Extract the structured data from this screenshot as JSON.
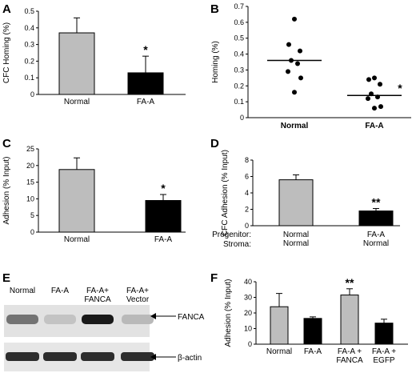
{
  "panels": {
    "A": "A",
    "B": "B",
    "C": "C",
    "D": "D",
    "E": "E",
    "F": "F"
  },
  "blot": {
    "lanes": [
      "Normal",
      "FA-A",
      "FA-A+\nFANCA",
      "FA-A+\nVector"
    ],
    "label_top": "FANCA",
    "label_bottom": "β-actin",
    "band_intensity_fanca": [
      0.55,
      0.15,
      1.0,
      0.2
    ],
    "band_intensity_actin": [
      0.9,
      0.9,
      0.9,
      0.9
    ]
  },
  "chart_data": [
    {
      "id": "A",
      "type": "bar",
      "categories": [
        "Normal",
        "FA-A"
      ],
      "values": [
        0.37,
        0.13
      ],
      "errors": [
        0.09,
        0.1
      ],
      "colors": [
        "#bdbdbd",
        "#000000"
      ],
      "ylabel": "CFC Homing (%)",
      "ylim": [
        0,
        0.5
      ],
      "yticks": [
        "0",
        "0.1",
        "0.2",
        "0.3",
        "0.4",
        "0.5"
      ],
      "significance": [
        "",
        "*"
      ]
    },
    {
      "id": "B",
      "type": "scatter",
      "categories": [
        "Normal",
        "FA-A"
      ],
      "ylabel": "Homing (%)",
      "ylim": [
        0,
        0.7
      ],
      "yticks": [
        "0",
        "0.1",
        "0.2",
        "0.3",
        "0.4",
        "0.5",
        "0.6",
        "0.7"
      ],
      "series": [
        {
          "values": [
            0.62,
            0.46,
            0.42,
            0.36,
            0.34,
            0.29,
            0.25,
            0.16
          ],
          "mean": 0.36
        },
        {
          "values": [
            0.25,
            0.24,
            0.21,
            0.15,
            0.13,
            0.12,
            0.07,
            0.06
          ],
          "mean": 0.14
        }
      ],
      "significance": [
        "",
        "*"
      ]
    },
    {
      "id": "C",
      "type": "bar",
      "categories": [
        "Normal",
        "FA-A"
      ],
      "values": [
        18.8,
        9.5
      ],
      "errors": [
        3.5,
        1.8
      ],
      "colors": [
        "#bdbdbd",
        "#000000"
      ],
      "ylabel": "Adhesion (% Input)",
      "ylim": [
        0,
        25
      ],
      "yticks": [
        "0",
        "5",
        "10",
        "15",
        "20",
        "25"
      ],
      "significance": [
        "",
        "*"
      ]
    },
    {
      "id": "D",
      "type": "bar",
      "categories": [
        "Normal\nNormal",
        "FA-A\nNormal"
      ],
      "row_labels": [
        "Progenitor:",
        "Stroma:"
      ],
      "values": [
        5.6,
        1.8
      ],
      "errors": [
        0.6,
        0.3
      ],
      "colors": [
        "#bdbdbd",
        "#000000"
      ],
      "ylabel": "CFC Adhesion (% Input)",
      "ylim": [
        0,
        8
      ],
      "yticks": [
        "0",
        "2",
        "4",
        "6",
        "8"
      ],
      "significance": [
        "",
        "**"
      ]
    },
    {
      "id": "F",
      "type": "bar",
      "categories": [
        "Normal",
        "FA-A",
        "FA-A +\nFANCA",
        "FA-A +\nEGFP"
      ],
      "values": [
        24,
        16.5,
        31.5,
        13.5
      ],
      "errors": [
        8.5,
        1,
        4,
        2.5
      ],
      "colors": [
        "#bdbdbd",
        "#000000",
        "#bdbdbd",
        "#000000"
      ],
      "ylabel": "Adhesion (% Input)",
      "ylim": [
        0,
        40
      ],
      "yticks": [
        "0",
        "10",
        "20",
        "30",
        "40"
      ],
      "significance": [
        "",
        "",
        "**",
        ""
      ]
    }
  ]
}
